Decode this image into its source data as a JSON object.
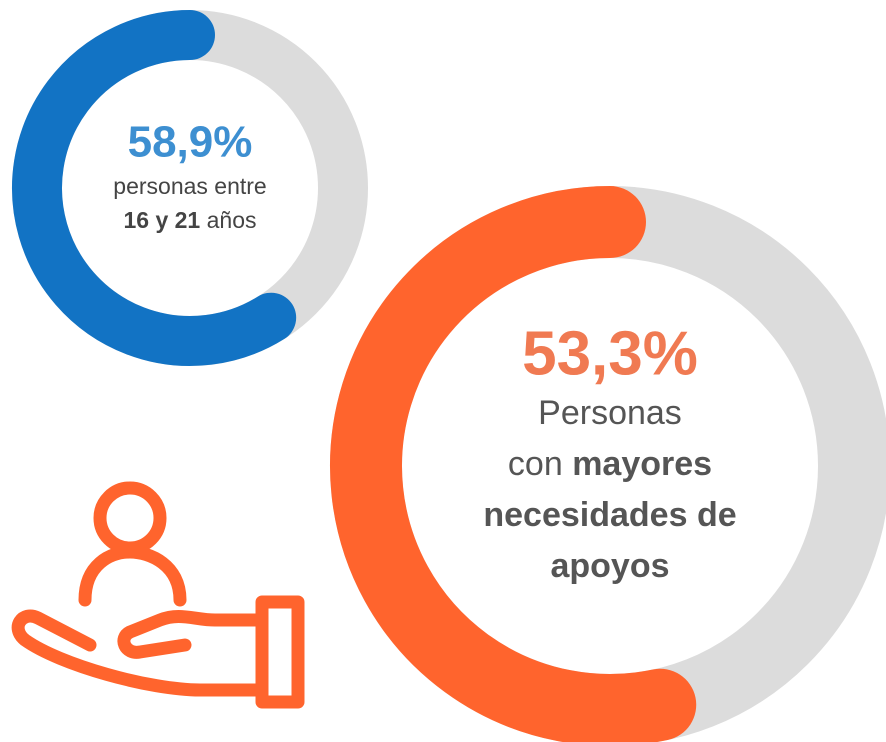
{
  "chart_data": [
    {
      "type": "donut",
      "values": [
        58.9
      ],
      "value_labels": [
        "58,9%"
      ],
      "color": "#1273c4",
      "track_color": "#dcdcdc",
      "label_color": "#3d8fd1",
      "caption_lines": [
        [
          {
            "text": "personas entre",
            "bold": false
          }
        ],
        [
          {
            "text": "16 y 21",
            "bold": true
          },
          {
            "text": " años",
            "bold": false
          }
        ]
      ]
    },
    {
      "type": "donut",
      "values": [
        53.3
      ],
      "value_labels": [
        "53,3%"
      ],
      "color": "#ff642d",
      "track_color": "#dcdcdc",
      "label_color": "#f07a52",
      "caption_lines": [
        [
          {
            "text": "Personas",
            "bold": false
          }
        ],
        [
          {
            "text": "con ",
            "bold": false
          },
          {
            "text": "mayores",
            "bold": true
          }
        ],
        [
          {
            "text": "necesidades de",
            "bold": true
          }
        ],
        [
          {
            "text": "apoyos",
            "bold": true
          }
        ]
      ]
    }
  ]
}
